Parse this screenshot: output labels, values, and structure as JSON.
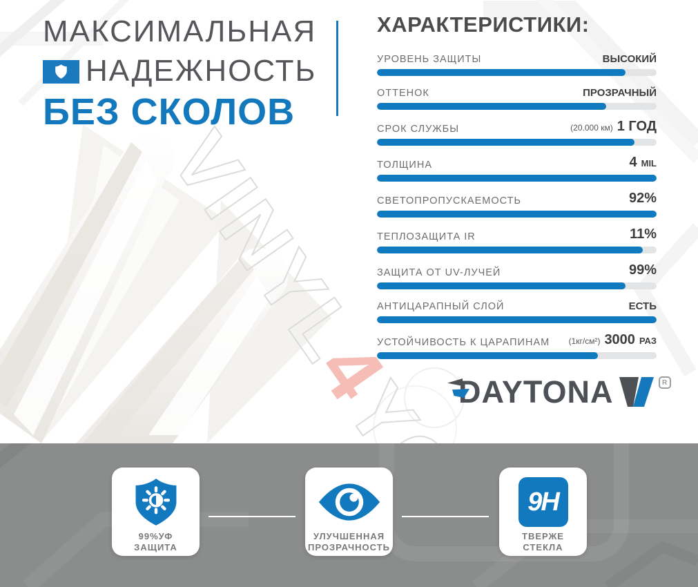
{
  "header": {
    "title_line1": "МАКСИМАЛЬНАЯ",
    "title_line2": "НАДЕЖНОСТЬ",
    "title_line3": "БЕЗ СКОЛОВ"
  },
  "specs": {
    "title": "ХАРАКТЕРИСТИКИ:",
    "rows": [
      {
        "label": "УРОВЕНЬ ЗАЩИТЫ",
        "value": "ВЫСОКИЙ",
        "fill_percent": 89
      },
      {
        "label": "ОТТЕНОК",
        "value": "ПРОЗРАЧНЫЙ",
        "fill_percent": 82
      },
      {
        "label": "СРОК СЛУЖБЫ",
        "value_prefix": "(20.000 км)",
        "value": "1 ГОД",
        "fill_percent": 92
      },
      {
        "label": "ТОЛЩИНА",
        "value": "4",
        "value_suffix": "MIL",
        "fill_percent": 100
      },
      {
        "label": "СВЕТОПРОПУСКАЕМОСТЬ",
        "value": "92%",
        "fill_percent": 100
      },
      {
        "label": "ТЕПЛОЗАЩИТА IR",
        "value": "11%",
        "fill_percent": 95
      },
      {
        "label": "ЗАЩИТА ОТ UV-ЛУЧЕЙ",
        "value": "99%",
        "fill_percent": 89
      },
      {
        "label": "АНТИЦАРАПНЫЙ СЛОЙ",
        "value": "ЕСТЬ",
        "fill_percent": 100
      },
      {
        "label": "УСТОЙЧИВОСТЬ К ЦАРАПИНАМ",
        "value_prefix": "(1кг/см²)",
        "value": "3000",
        "value_suffix": "РАЗ",
        "fill_percent": 79
      }
    ]
  },
  "brand": {
    "name": "DAYTONA",
    "registered_mark": "R"
  },
  "watermark": {
    "part1": "VINYL",
    "part2": "4",
    "part3": "YOU"
  },
  "badges": [
    {
      "icon": "uv-shield-sun-icon",
      "label_line1": "99%УФ",
      "label_line2": "ЗАЩИТА"
    },
    {
      "icon": "eye-icon",
      "label_line1": "УЛУЧШЕННАЯ",
      "label_line2": "ПРОЗРАЧНОСТЬ"
    },
    {
      "icon": "9h-hardness-icon",
      "icon_text": "9H",
      "label_line1": "ТВЕРЖЕ",
      "label_line2": "СТЕКЛА"
    }
  ],
  "colors": {
    "accent_blue": "#1478bd",
    "bar_blue": "#0f7ac0",
    "bar_track": "#e3e4e6",
    "heading_gray": "#55565a",
    "dark_text": "#4a4b4d",
    "band_gray": "#8b8c8c",
    "logo_dark": "#4d5156"
  }
}
